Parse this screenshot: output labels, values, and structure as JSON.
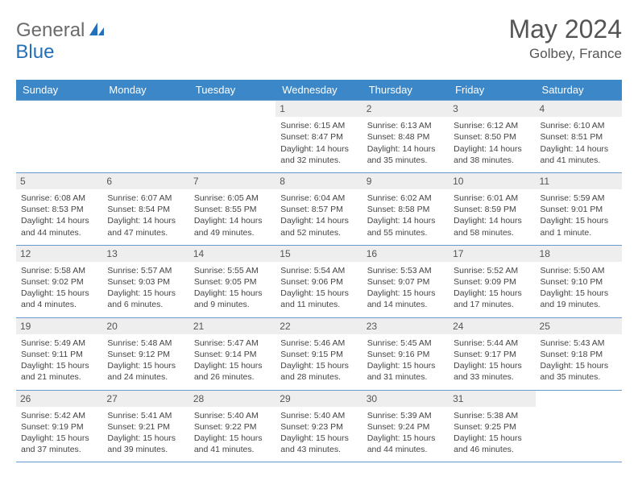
{
  "brand": {
    "part1": "General",
    "part2": "Blue"
  },
  "title": "May 2024",
  "location": "Golbey, France",
  "colors": {
    "header_bg": "#3b87c8",
    "border": "#6699cc",
    "daynum_bg": "#eeeeee",
    "brand_gray": "#6b6b6b",
    "brand_blue": "#2470b8"
  },
  "weekdays": [
    "Sunday",
    "Monday",
    "Tuesday",
    "Wednesday",
    "Thursday",
    "Friday",
    "Saturday"
  ],
  "weeks": [
    [
      {
        "n": "",
        "sr": "",
        "ss": "",
        "dl": ""
      },
      {
        "n": "",
        "sr": "",
        "ss": "",
        "dl": ""
      },
      {
        "n": "",
        "sr": "",
        "ss": "",
        "dl": ""
      },
      {
        "n": "1",
        "sr": "Sunrise: 6:15 AM",
        "ss": "Sunset: 8:47 PM",
        "dl": "Daylight: 14 hours and 32 minutes."
      },
      {
        "n": "2",
        "sr": "Sunrise: 6:13 AM",
        "ss": "Sunset: 8:48 PM",
        "dl": "Daylight: 14 hours and 35 minutes."
      },
      {
        "n": "3",
        "sr": "Sunrise: 6:12 AM",
        "ss": "Sunset: 8:50 PM",
        "dl": "Daylight: 14 hours and 38 minutes."
      },
      {
        "n": "4",
        "sr": "Sunrise: 6:10 AM",
        "ss": "Sunset: 8:51 PM",
        "dl": "Daylight: 14 hours and 41 minutes."
      }
    ],
    [
      {
        "n": "5",
        "sr": "Sunrise: 6:08 AM",
        "ss": "Sunset: 8:53 PM",
        "dl": "Daylight: 14 hours and 44 minutes."
      },
      {
        "n": "6",
        "sr": "Sunrise: 6:07 AM",
        "ss": "Sunset: 8:54 PM",
        "dl": "Daylight: 14 hours and 47 minutes."
      },
      {
        "n": "7",
        "sr": "Sunrise: 6:05 AM",
        "ss": "Sunset: 8:55 PM",
        "dl": "Daylight: 14 hours and 49 minutes."
      },
      {
        "n": "8",
        "sr": "Sunrise: 6:04 AM",
        "ss": "Sunset: 8:57 PM",
        "dl": "Daylight: 14 hours and 52 minutes."
      },
      {
        "n": "9",
        "sr": "Sunrise: 6:02 AM",
        "ss": "Sunset: 8:58 PM",
        "dl": "Daylight: 14 hours and 55 minutes."
      },
      {
        "n": "10",
        "sr": "Sunrise: 6:01 AM",
        "ss": "Sunset: 8:59 PM",
        "dl": "Daylight: 14 hours and 58 minutes."
      },
      {
        "n": "11",
        "sr": "Sunrise: 5:59 AM",
        "ss": "Sunset: 9:01 PM",
        "dl": "Daylight: 15 hours and 1 minute."
      }
    ],
    [
      {
        "n": "12",
        "sr": "Sunrise: 5:58 AM",
        "ss": "Sunset: 9:02 PM",
        "dl": "Daylight: 15 hours and 4 minutes."
      },
      {
        "n": "13",
        "sr": "Sunrise: 5:57 AM",
        "ss": "Sunset: 9:03 PM",
        "dl": "Daylight: 15 hours and 6 minutes."
      },
      {
        "n": "14",
        "sr": "Sunrise: 5:55 AM",
        "ss": "Sunset: 9:05 PM",
        "dl": "Daylight: 15 hours and 9 minutes."
      },
      {
        "n": "15",
        "sr": "Sunrise: 5:54 AM",
        "ss": "Sunset: 9:06 PM",
        "dl": "Daylight: 15 hours and 11 minutes."
      },
      {
        "n": "16",
        "sr": "Sunrise: 5:53 AM",
        "ss": "Sunset: 9:07 PM",
        "dl": "Daylight: 15 hours and 14 minutes."
      },
      {
        "n": "17",
        "sr": "Sunrise: 5:52 AM",
        "ss": "Sunset: 9:09 PM",
        "dl": "Daylight: 15 hours and 17 minutes."
      },
      {
        "n": "18",
        "sr": "Sunrise: 5:50 AM",
        "ss": "Sunset: 9:10 PM",
        "dl": "Daylight: 15 hours and 19 minutes."
      }
    ],
    [
      {
        "n": "19",
        "sr": "Sunrise: 5:49 AM",
        "ss": "Sunset: 9:11 PM",
        "dl": "Daylight: 15 hours and 21 minutes."
      },
      {
        "n": "20",
        "sr": "Sunrise: 5:48 AM",
        "ss": "Sunset: 9:12 PM",
        "dl": "Daylight: 15 hours and 24 minutes."
      },
      {
        "n": "21",
        "sr": "Sunrise: 5:47 AM",
        "ss": "Sunset: 9:14 PM",
        "dl": "Daylight: 15 hours and 26 minutes."
      },
      {
        "n": "22",
        "sr": "Sunrise: 5:46 AM",
        "ss": "Sunset: 9:15 PM",
        "dl": "Daylight: 15 hours and 28 minutes."
      },
      {
        "n": "23",
        "sr": "Sunrise: 5:45 AM",
        "ss": "Sunset: 9:16 PM",
        "dl": "Daylight: 15 hours and 31 minutes."
      },
      {
        "n": "24",
        "sr": "Sunrise: 5:44 AM",
        "ss": "Sunset: 9:17 PM",
        "dl": "Daylight: 15 hours and 33 minutes."
      },
      {
        "n": "25",
        "sr": "Sunrise: 5:43 AM",
        "ss": "Sunset: 9:18 PM",
        "dl": "Daylight: 15 hours and 35 minutes."
      }
    ],
    [
      {
        "n": "26",
        "sr": "Sunrise: 5:42 AM",
        "ss": "Sunset: 9:19 PM",
        "dl": "Daylight: 15 hours and 37 minutes."
      },
      {
        "n": "27",
        "sr": "Sunrise: 5:41 AM",
        "ss": "Sunset: 9:21 PM",
        "dl": "Daylight: 15 hours and 39 minutes."
      },
      {
        "n": "28",
        "sr": "Sunrise: 5:40 AM",
        "ss": "Sunset: 9:22 PM",
        "dl": "Daylight: 15 hours and 41 minutes."
      },
      {
        "n": "29",
        "sr": "Sunrise: 5:40 AM",
        "ss": "Sunset: 9:23 PM",
        "dl": "Daylight: 15 hours and 43 minutes."
      },
      {
        "n": "30",
        "sr": "Sunrise: 5:39 AM",
        "ss": "Sunset: 9:24 PM",
        "dl": "Daylight: 15 hours and 44 minutes."
      },
      {
        "n": "31",
        "sr": "Sunrise: 5:38 AM",
        "ss": "Sunset: 9:25 PM",
        "dl": "Daylight: 15 hours and 46 minutes."
      },
      {
        "n": "",
        "sr": "",
        "ss": "",
        "dl": ""
      }
    ]
  ]
}
